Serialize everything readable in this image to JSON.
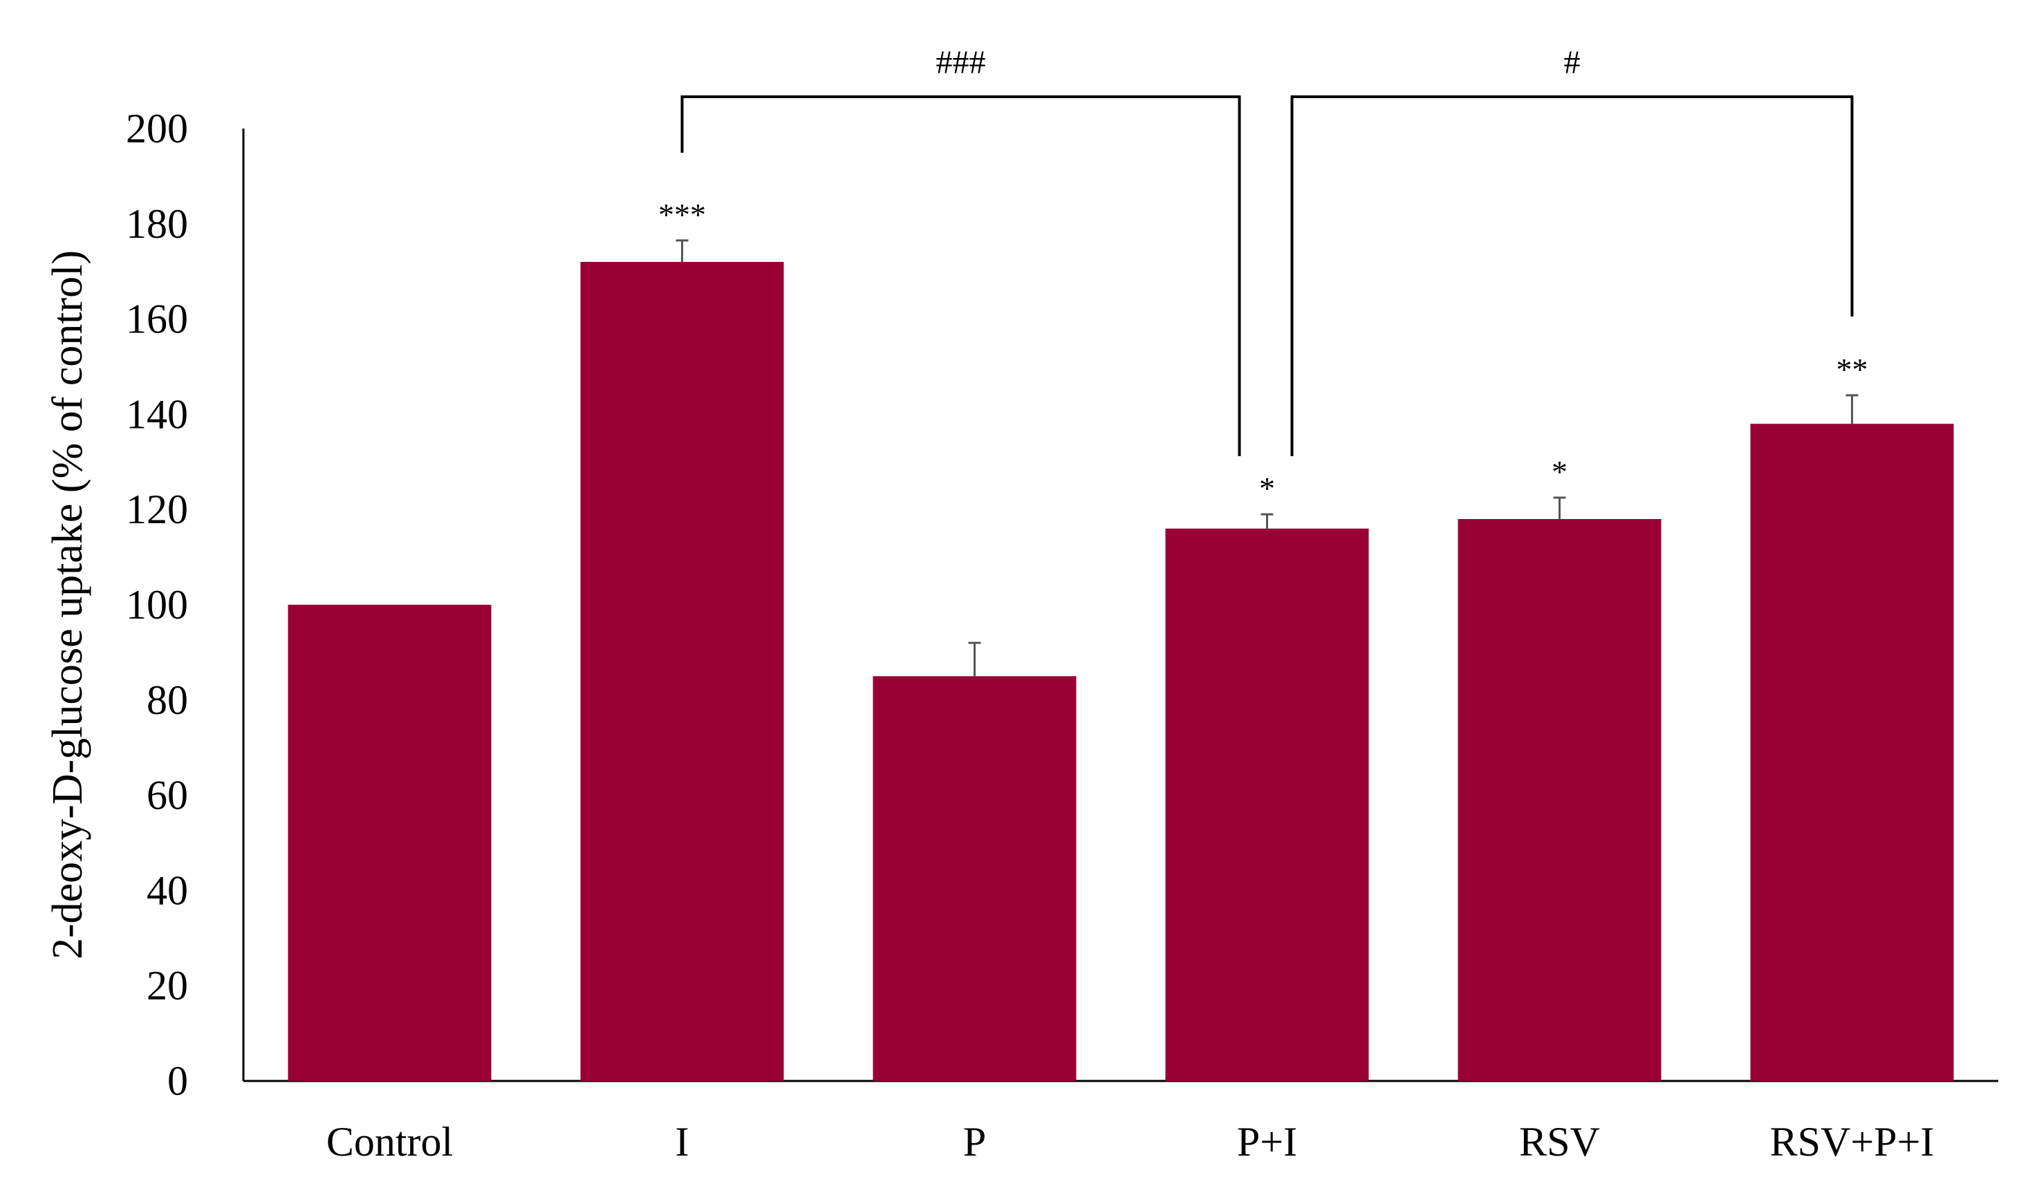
{
  "chart_data": {
    "type": "bar",
    "xlabel": "",
    "ylabel": "2-deoxy-D-glucose uptake (% of control)",
    "ylim": [
      0,
      200
    ],
    "yticks": [
      0,
      20,
      40,
      60,
      80,
      100,
      120,
      140,
      160,
      180,
      200
    ],
    "grid": false,
    "categories": [
      "Control",
      "I",
      "P",
      "P+I",
      "RSV",
      "RSV+P+I"
    ],
    "values": [
      100,
      172,
      85,
      116,
      118,
      138
    ],
    "errors": [
      0,
      4.5,
      7,
      3,
      4.5,
      6
    ],
    "significance": [
      "",
      "***",
      "",
      "*",
      "*",
      "**"
    ],
    "comparisons": [
      {
        "from": "I",
        "to": "P+I",
        "label": "###"
      },
      {
        "from": "P+I",
        "to": "RSV+P+I",
        "label": "#"
      }
    ],
    "colors": {
      "bar": "#990033",
      "axis": "#000000",
      "text": "#000000"
    }
  }
}
